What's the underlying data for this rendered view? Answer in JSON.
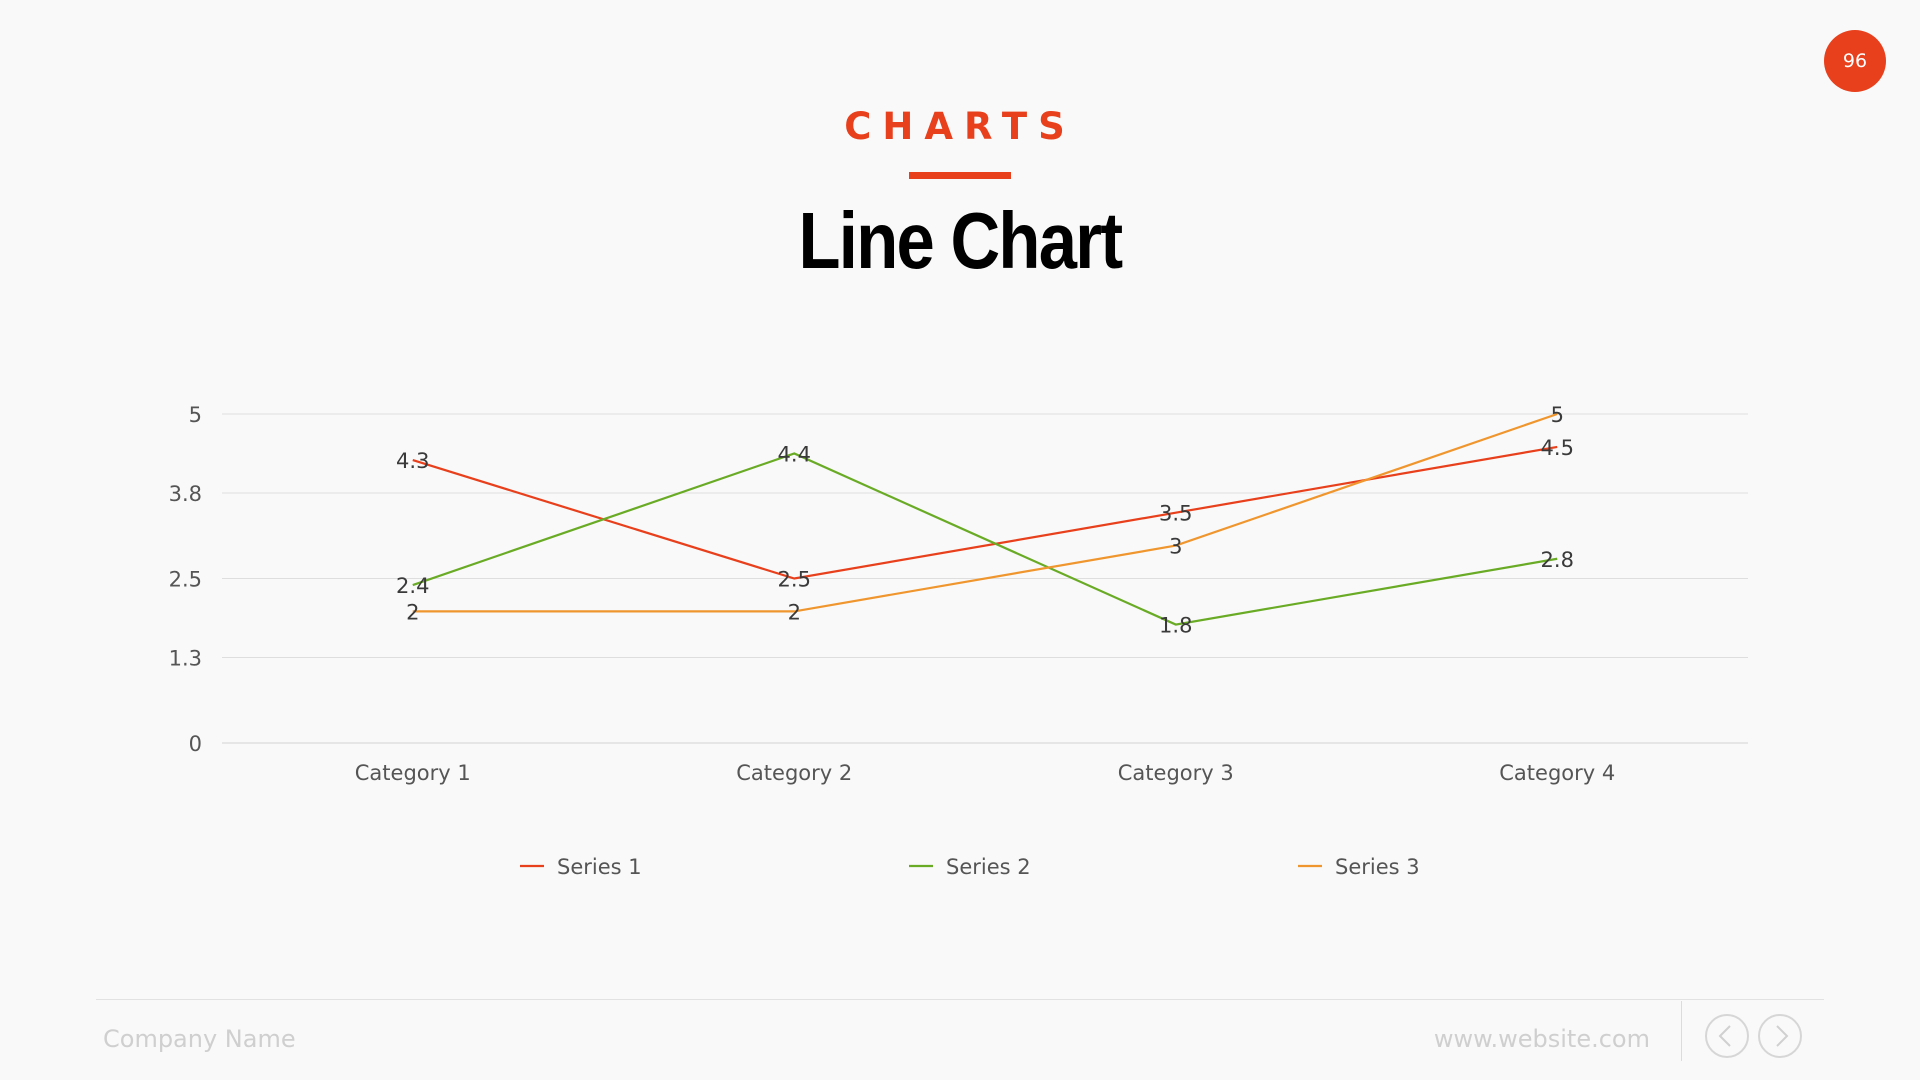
{
  "page": {
    "number": "96",
    "eyebrow": "CHARTS",
    "title": "Line Chart",
    "company": "Company Name",
    "website": "www.website.com"
  },
  "icons": {
    "prev": "chevron-left-icon",
    "next": "chevron-right-icon"
  },
  "colors": {
    "accent": "#e8401c",
    "series": [
      "#e8401c",
      "#6aab26",
      "#f0962e"
    ]
  },
  "chart_data": {
    "type": "line",
    "categories": [
      "Category 1",
      "Category 2",
      "Category 3",
      "Category 4"
    ],
    "series": [
      {
        "name": "Series 1",
        "values": [
          4.3,
          2.5,
          3.5,
          4.5
        ]
      },
      {
        "name": "Series 2",
        "values": [
          2.4,
          4.4,
          1.8,
          2.8
        ]
      },
      {
        "name": "Series 3",
        "values": [
          2,
          2,
          3,
          5
        ]
      }
    ],
    "yticks": [
      0,
      1.3,
      2.5,
      3.8,
      5
    ],
    "ylim": [
      0,
      5
    ],
    "grid": true,
    "legend": "bottom",
    "data_labels": true
  }
}
